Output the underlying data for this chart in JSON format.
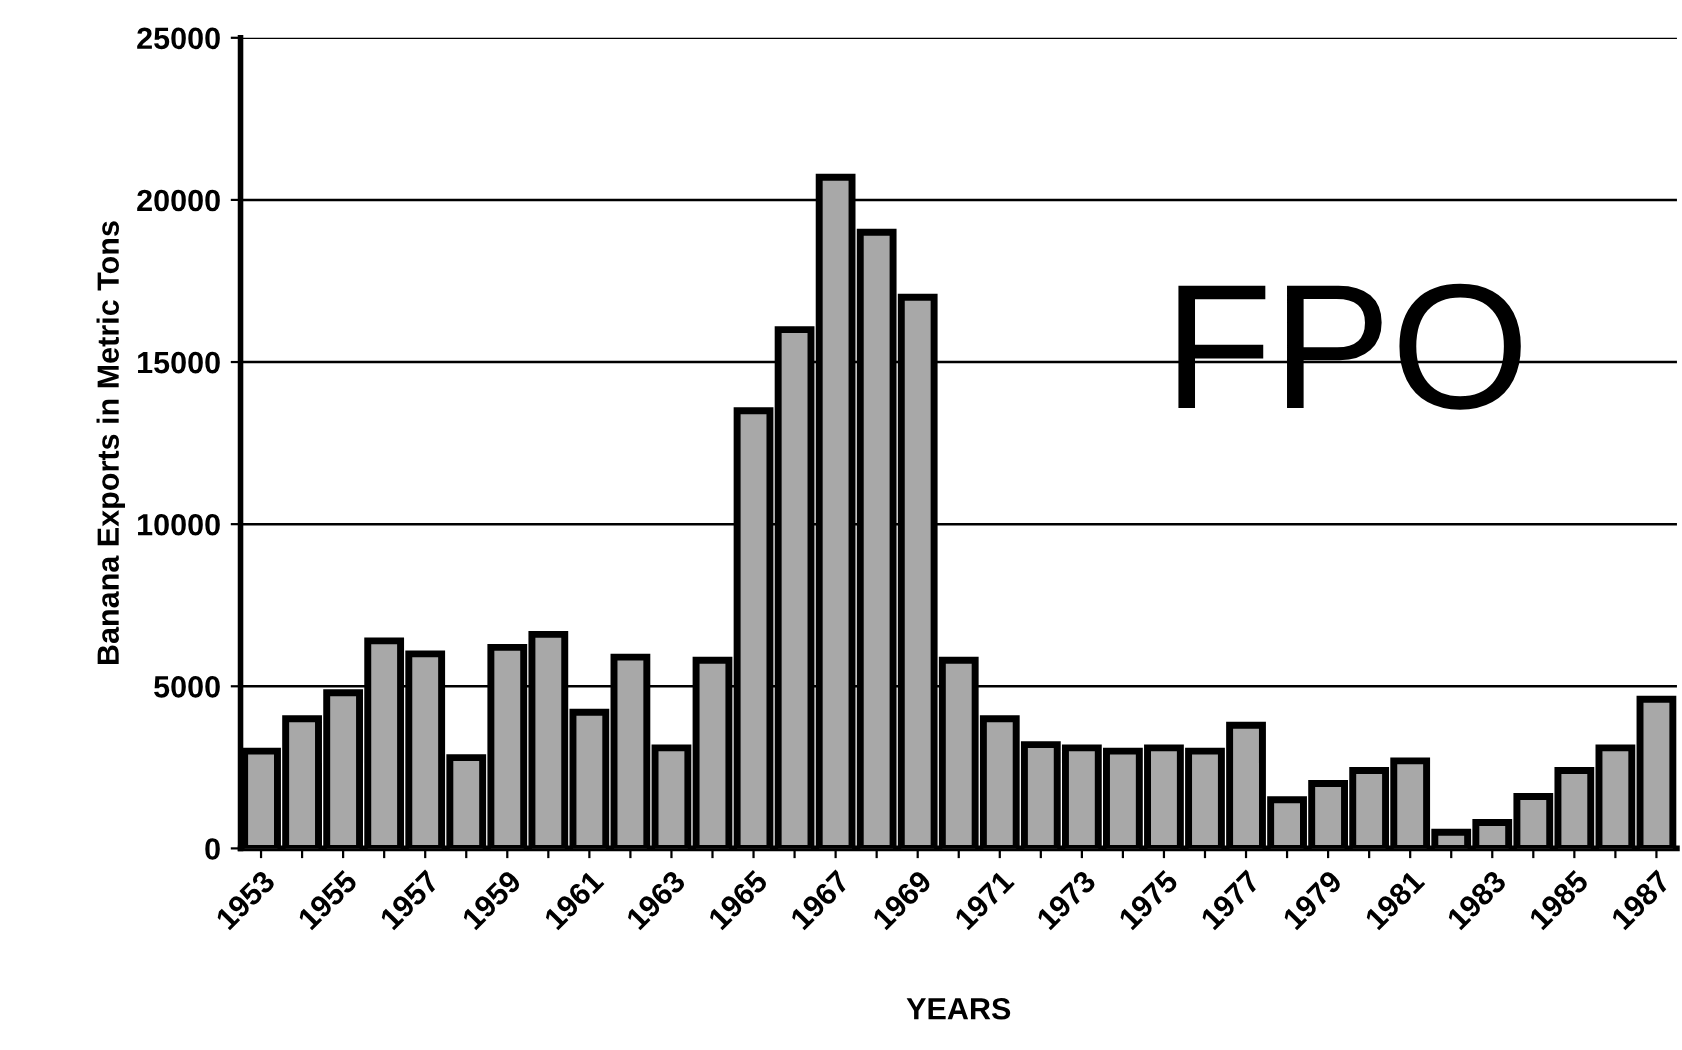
{
  "chart_data": {
    "type": "bar",
    "xlabel": "YEARS",
    "ylabel": "Banana Exports in Metric Tons",
    "categories": [
      "1953",
      null,
      "1955",
      null,
      "1957",
      null,
      "1959",
      null,
      "1961",
      null,
      "1963",
      null,
      "1965",
      null,
      "1967",
      null,
      "1969",
      null,
      "1971",
      null,
      "1973",
      null,
      "1975",
      null,
      "1977",
      null,
      "1979",
      null,
      "1981",
      null,
      "1983",
      null,
      "1985",
      null,
      "1987"
    ],
    "values": [
      3000,
      4000,
      4800,
      6400,
      6000,
      2800,
      6200,
      6600,
      4200,
      5900,
      3100,
      5800,
      13500,
      16000,
      20700,
      19000,
      17000,
      5800,
      4000,
      3200,
      3100,
      3000,
      3100,
      3000,
      3800,
      1500,
      2000,
      2400,
      2700,
      500,
      800,
      1600,
      2400,
      3100,
      4600
    ],
    "color": "#a8a8a8",
    "ylim": [
      0,
      25000
    ],
    "yticks": [
      0,
      5000,
      10000,
      15000,
      20000,
      25000
    ],
    "grid": "y",
    "annotations": [
      "FPO"
    ]
  }
}
